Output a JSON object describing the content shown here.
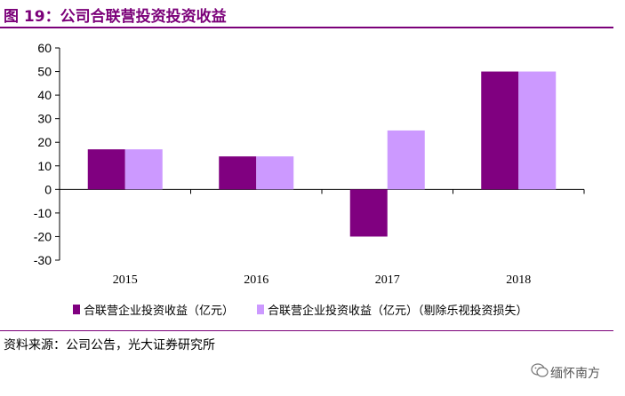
{
  "figure": {
    "title": "图 19：公司合联营投资投资收益",
    "source": "资料来源：公司公告，光大证券研究所",
    "watermark": "缅怀南方"
  },
  "colors": {
    "accent": "#7b0079",
    "series1": "#800080",
    "series2": "#cc99ff"
  },
  "chart_data": {
    "type": "bar",
    "title": "",
    "xlabel": "",
    "ylabel": "",
    "categories": [
      "2015",
      "2016",
      "2017",
      "2018"
    ],
    "series": [
      {
        "name": "合联营企业投资收益（亿元）",
        "values": [
          17,
          14,
          -20,
          50
        ]
      },
      {
        "name": "合联营企业投资收益（亿元）（剔除乐视投资损失）",
        "values": [
          17,
          14,
          25,
          50
        ]
      }
    ],
    "ylim": [
      -30,
      60
    ],
    "yticks": [
      60,
      50,
      40,
      30,
      20,
      10,
      0,
      -10,
      -20,
      -30
    ],
    "grid": false,
    "legend": "bottom"
  }
}
